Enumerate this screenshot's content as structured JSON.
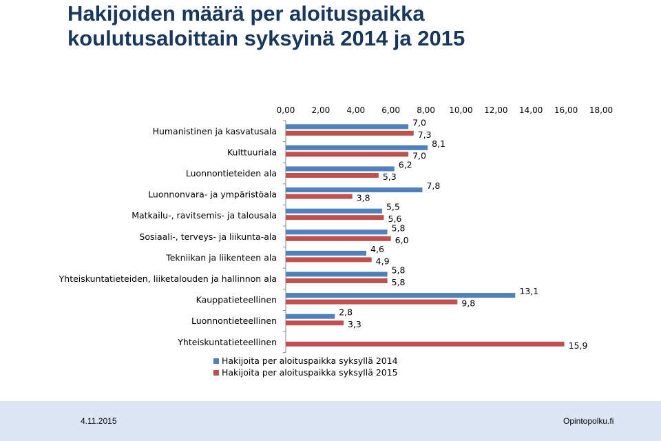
{
  "title_line1": "Hakijoiden määrä per aloituspaikka",
  "title_line2": "koulutusaloittain syksyinä 2014 ja 2015",
  "footer": {
    "date": "4.11.2015",
    "brand": "Opintopolku.fi",
    "background": "#dde6f4"
  },
  "chart_data": {
    "type": "bar",
    "orientation": "horizontal",
    "title": "",
    "xlabel": "",
    "ylabel": "",
    "xlim": [
      0,
      18
    ],
    "ticks": [
      "0,00",
      "2,00",
      "4,00",
      "6,00",
      "8,00",
      "10,00",
      "12,00",
      "14,00",
      "16,00",
      "18,00"
    ],
    "axis_position": "top",
    "grid": false,
    "legend_position": "bottom",
    "categories": [
      "Humanistinen ja kasvatusala",
      "Kulttuuriala",
      "Luonnontieteiden ala",
      "Luonnonvara- ja ympäristöala",
      "Matkailu-, ravitsemis- ja talousala",
      "Sosiaali-, terveys- ja liikunta-ala",
      "Tekniikan ja liikenteen ala",
      "Yhteiskuntatieteiden, liiketalouden ja hallinnon ala",
      "Kauppatieteellinen",
      "Luonnontieteellinen",
      "Yhteiskuntatieteellinen"
    ],
    "series": [
      {
        "name": "Hakijoita per aloituspaikka syksyllä 2014",
        "color": "#4F81BD",
        "values": [
          7.0,
          8.1,
          6.2,
          7.8,
          5.5,
          5.8,
          4.6,
          5.8,
          13.1,
          2.8,
          null
        ],
        "labels": [
          "7,0",
          "8,1",
          "6,2",
          "7,8",
          "5,5",
          "5,8",
          "4,6",
          "5,8",
          "13,1",
          "2,8",
          ""
        ]
      },
      {
        "name": "Hakijoita per aloituspaikka syksyllä 2015",
        "color": "#C0504D",
        "values": [
          7.3,
          7.0,
          5.3,
          3.8,
          5.6,
          6.0,
          4.9,
          5.8,
          9.8,
          3.3,
          15.9
        ],
        "labels": [
          "7,3",
          "7,0",
          "5,3",
          "3,8",
          "5,6",
          "6,0",
          "4,9",
          "5,8",
          "9,8",
          "3,3",
          "15,9"
        ]
      }
    ]
  }
}
